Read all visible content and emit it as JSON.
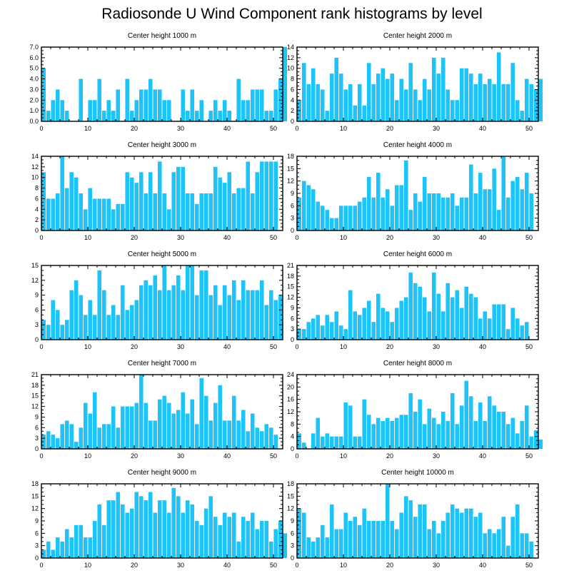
{
  "title": "Radiosonde U Wind Component rank histograms by level",
  "colors": {
    "bar": "#1EC3F7",
    "axis": "#000000"
  },
  "chart_data": [
    {
      "type": "bar",
      "title": "Center height 1000 m",
      "xlim": [
        0,
        52
      ],
      "xticks": [
        0,
        10,
        20,
        30,
        40,
        50
      ],
      "ylim": [
        0,
        7
      ],
      "yticks": [
        "0.0",
        "1.0",
        "2.0",
        "3.0",
        "4.0",
        "5.0",
        "6.0",
        "7.0"
      ],
      "values": [
        5,
        1,
        2,
        3,
        2,
        1,
        0,
        0,
        4,
        0,
        2,
        2,
        4,
        1,
        2,
        1,
        3,
        0,
        4,
        1,
        2,
        3,
        3,
        4,
        3,
        3,
        2,
        2,
        0,
        0,
        3,
        1,
        3,
        1,
        2,
        0,
        1,
        2,
        1,
        2,
        1,
        0,
        4,
        2,
        2,
        3,
        3,
        3,
        1,
        1,
        3,
        4,
        7
      ]
    },
    {
      "type": "bar",
      "title": "Center height 2000 m",
      "xlim": [
        0,
        52
      ],
      "xticks": [
        0,
        10,
        20,
        30,
        40,
        50
      ],
      "ylim": [
        0,
        14
      ],
      "yticks": [
        "0",
        "2",
        "4",
        "6",
        "8",
        "10",
        "12",
        "14"
      ],
      "values": [
        4,
        11,
        7,
        10,
        7,
        6,
        2,
        9,
        12,
        9,
        6,
        7,
        3,
        7,
        3,
        11,
        7,
        9,
        10,
        8,
        9,
        4,
        8,
        6,
        11,
        6,
        4,
        8,
        6,
        12,
        9,
        12,
        6,
        4,
        4,
        10,
        10,
        9,
        7,
        9,
        7,
        8,
        7,
        13,
        7,
        7,
        11,
        4,
        2,
        8,
        7,
        6,
        8
      ]
    },
    {
      "type": "bar",
      "title": "Center height 3000 m",
      "xlim": [
        0,
        52
      ],
      "xticks": [
        0,
        10,
        20,
        30,
        40,
        50
      ],
      "ylim": [
        0,
        14
      ],
      "yticks": [
        "0",
        "2",
        "4",
        "6",
        "8",
        "10",
        "12",
        "14"
      ],
      "values": [
        11,
        6,
        6,
        7,
        14,
        8,
        11,
        10,
        7,
        4,
        8,
        6,
        6,
        6,
        6,
        4,
        5,
        5,
        11,
        10,
        9,
        11,
        7,
        11,
        7,
        13,
        7,
        4,
        11,
        12,
        12,
        7,
        7,
        5,
        7,
        7,
        7,
        12,
        10,
        9,
        11,
        7,
        8,
        8,
        13,
        7,
        11,
        13,
        13,
        13,
        13
      ]
    },
    {
      "type": "bar",
      "title": "Center height 4000 m",
      "xlim": [
        0,
        52
      ],
      "xticks": [
        0,
        10,
        20,
        30,
        40,
        50
      ],
      "ylim": [
        0,
        18
      ],
      "yticks": [
        "0",
        "3",
        "6",
        "9",
        "12",
        "15",
        "18"
      ],
      "values": [
        8,
        12,
        11,
        10,
        7,
        6,
        5,
        3,
        3,
        6,
        6,
        6,
        6,
        7,
        8,
        13,
        8,
        14,
        8,
        10,
        6,
        11,
        11,
        17,
        5,
        9,
        7,
        13,
        9,
        9,
        9,
        8,
        8,
        9,
        6,
        8,
        8,
        16,
        9,
        14,
        10,
        10,
        15,
        5,
        18,
        8,
        12,
        13,
        10,
        14,
        9
      ]
    },
    {
      "type": "bar",
      "title": "Center height 5000 m",
      "xlim": [
        0,
        52
      ],
      "xticks": [
        0,
        10,
        20,
        30,
        40,
        50
      ],
      "ylim": [
        0,
        15
      ],
      "yticks": [
        "0",
        "3",
        "6",
        "9",
        "12",
        "15"
      ],
      "values": [
        4,
        3,
        8,
        6,
        3,
        4,
        10,
        12,
        9,
        5,
        8,
        5,
        14,
        10,
        5,
        7,
        5,
        11,
        6,
        7,
        8,
        11,
        12,
        11,
        13,
        10,
        15,
        10,
        11,
        13,
        10,
        15,
        15,
        9,
        14,
        14,
        9,
        11,
        7,
        11,
        9,
        12,
        8,
        12,
        10,
        10,
        10,
        12,
        7,
        10,
        8,
        9
      ]
    },
    {
      "type": "bar",
      "title": "Center height 6000 m",
      "xlim": [
        0,
        52
      ],
      "xticks": [
        0,
        10,
        20,
        30,
        40,
        50
      ],
      "ylim": [
        0,
        21
      ],
      "yticks": [
        "0",
        "3",
        "6",
        "9",
        "12",
        "15",
        "18",
        "21"
      ],
      "values": [
        3,
        3,
        5,
        6,
        7,
        4,
        7,
        5,
        8,
        4,
        3,
        14,
        8,
        7,
        9,
        11,
        5,
        13,
        9,
        8,
        5,
        9,
        11,
        12,
        19,
        16,
        15,
        12,
        8,
        19,
        13,
        8,
        16,
        12,
        14,
        9,
        15,
        13,
        12,
        6,
        8,
        6,
        10,
        10,
        10,
        3,
        9,
        6,
        4,
        5
      ]
    },
    {
      "type": "bar",
      "title": "Center height 7000 m",
      "xlim": [
        0,
        52
      ],
      "xticks": [
        0,
        10,
        20,
        30,
        40,
        50
      ],
      "ylim": [
        0,
        21
      ],
      "yticks": [
        "0",
        "3",
        "6",
        "9",
        "12",
        "15",
        "18",
        "21"
      ],
      "values": [
        4,
        5,
        4,
        3,
        7,
        8,
        7,
        2,
        6,
        13,
        10,
        16,
        6,
        7,
        7,
        12,
        6,
        12,
        12,
        12,
        13,
        21,
        13,
        8,
        8,
        14,
        15,
        13,
        10,
        11,
        16,
        10,
        14,
        7,
        20,
        15,
        8,
        13,
        18,
        8,
        8,
        15,
        8,
        11,
        5,
        10,
        6,
        5,
        7,
        6,
        4
      ]
    },
    {
      "type": "bar",
      "title": "Center height 8000 m",
      "xlim": [
        0,
        52
      ],
      "xticks": [
        0,
        10,
        20,
        30,
        40,
        50
      ],
      "ylim": [
        0,
        24
      ],
      "yticks": [
        "0",
        "4",
        "8",
        "12",
        "16",
        "20",
        "24"
      ],
      "values": [
        5,
        2,
        0,
        5,
        10,
        4,
        5,
        4,
        4,
        4,
        15,
        14,
        4,
        4,
        16,
        11,
        8,
        10,
        9,
        10,
        9,
        10,
        11,
        11,
        18,
        12,
        16,
        8,
        13,
        10,
        8,
        12,
        9,
        18,
        8,
        14,
        22,
        17,
        9,
        15,
        9,
        17,
        14,
        12,
        12,
        8,
        10,
        5,
        9,
        14,
        4,
        6,
        3
      ]
    },
    {
      "type": "bar",
      "title": "Center height 9000 m",
      "xlim": [
        0,
        52
      ],
      "xticks": [
        0,
        10,
        20,
        30,
        40,
        50
      ],
      "ylim": [
        0,
        18
      ],
      "yticks": [
        "0",
        "3",
        "6",
        "9",
        "12",
        "15",
        "18"
      ],
      "values": [
        2,
        4,
        2,
        5,
        4,
        7,
        5,
        8,
        8,
        5,
        5,
        9,
        13,
        8,
        14,
        14,
        16,
        13,
        11,
        12,
        16,
        15,
        14,
        16,
        11,
        14,
        14,
        11,
        17,
        15,
        11,
        14,
        13,
        9,
        8,
        12,
        15,
        10,
        8,
        11,
        10,
        11,
        4,
        10,
        9,
        11,
        7,
        9,
        9,
        4,
        7,
        9,
        6
      ]
    },
    {
      "type": "bar",
      "title": "Center height 10000 m",
      "xlim": [
        0,
        52
      ],
      "xticks": [
        0,
        10,
        20,
        30,
        40,
        50
      ],
      "ylim": [
        0,
        18
      ],
      "yticks": [
        "0",
        "3",
        "6",
        "9",
        "12",
        "15",
        "18"
      ],
      "values": [
        12,
        11,
        5,
        4,
        5,
        8,
        5,
        13,
        7,
        7,
        11,
        9,
        10,
        8,
        12,
        9,
        9,
        9,
        9,
        18,
        9,
        7,
        11,
        15,
        14,
        10,
        13,
        13,
        7,
        9,
        6,
        9,
        11,
        13,
        12,
        11,
        12,
        12,
        10,
        11,
        6,
        7,
        6,
        7,
        10,
        3,
        10,
        13,
        6,
        6,
        4
      ]
    }
  ]
}
